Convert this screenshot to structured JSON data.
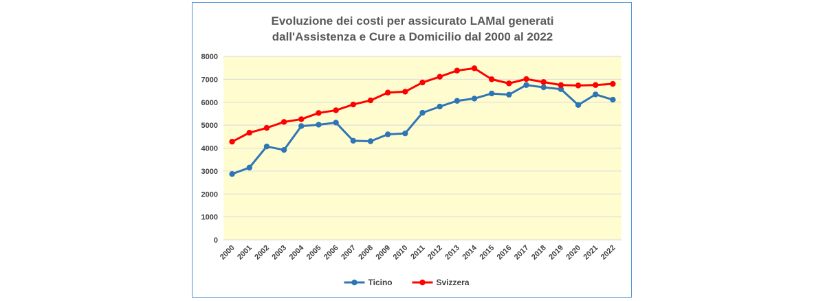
{
  "chart_data": {
    "type": "line",
    "title_lines": [
      "Evoluzione dei costi per assicurato LAMal generati",
      "dall'Assistenza e Cure a Domicilio dal 2000 al 2022"
    ],
    "xlabel": "",
    "ylabel": "",
    "ylim": [
      0,
      8000
    ],
    "yticks": [
      "0",
      "1000",
      "2000",
      "3000",
      "4000",
      "5000",
      "6000",
      "7000",
      "8000"
    ],
    "categories": [
      "2000",
      "2001",
      "2002",
      "2003",
      "2004",
      "2005",
      "2006",
      "2007",
      "2008",
      "2009",
      "2010",
      "2011",
      "2012",
      "2013",
      "2014",
      "2015",
      "2016",
      "2017",
      "2018",
      "2019",
      "2020",
      "2021",
      "2022"
    ],
    "grid": true,
    "legend_position": "bottom",
    "plot_background": "#fffdd0",
    "series": [
      {
        "name": "Ticino",
        "color": "#2e75b6",
        "values": [
          2870,
          3150,
          4070,
          3920,
          4960,
          5020,
          5110,
          4320,
          4300,
          4600,
          4640,
          5540,
          5810,
          6060,
          6160,
          6380,
          6330,
          6750,
          6650,
          6570,
          5880,
          6340,
          6110
        ]
      },
      {
        "name": "Svizzera",
        "color": "#ff0000",
        "values": [
          4280,
          4670,
          4880,
          5140,
          5260,
          5530,
          5650,
          5900,
          6080,
          6420,
          6460,
          6860,
          7110,
          7380,
          7480,
          7000,
          6820,
          7010,
          6880,
          6750,
          6730,
          6750,
          6800
        ]
      }
    ]
  }
}
